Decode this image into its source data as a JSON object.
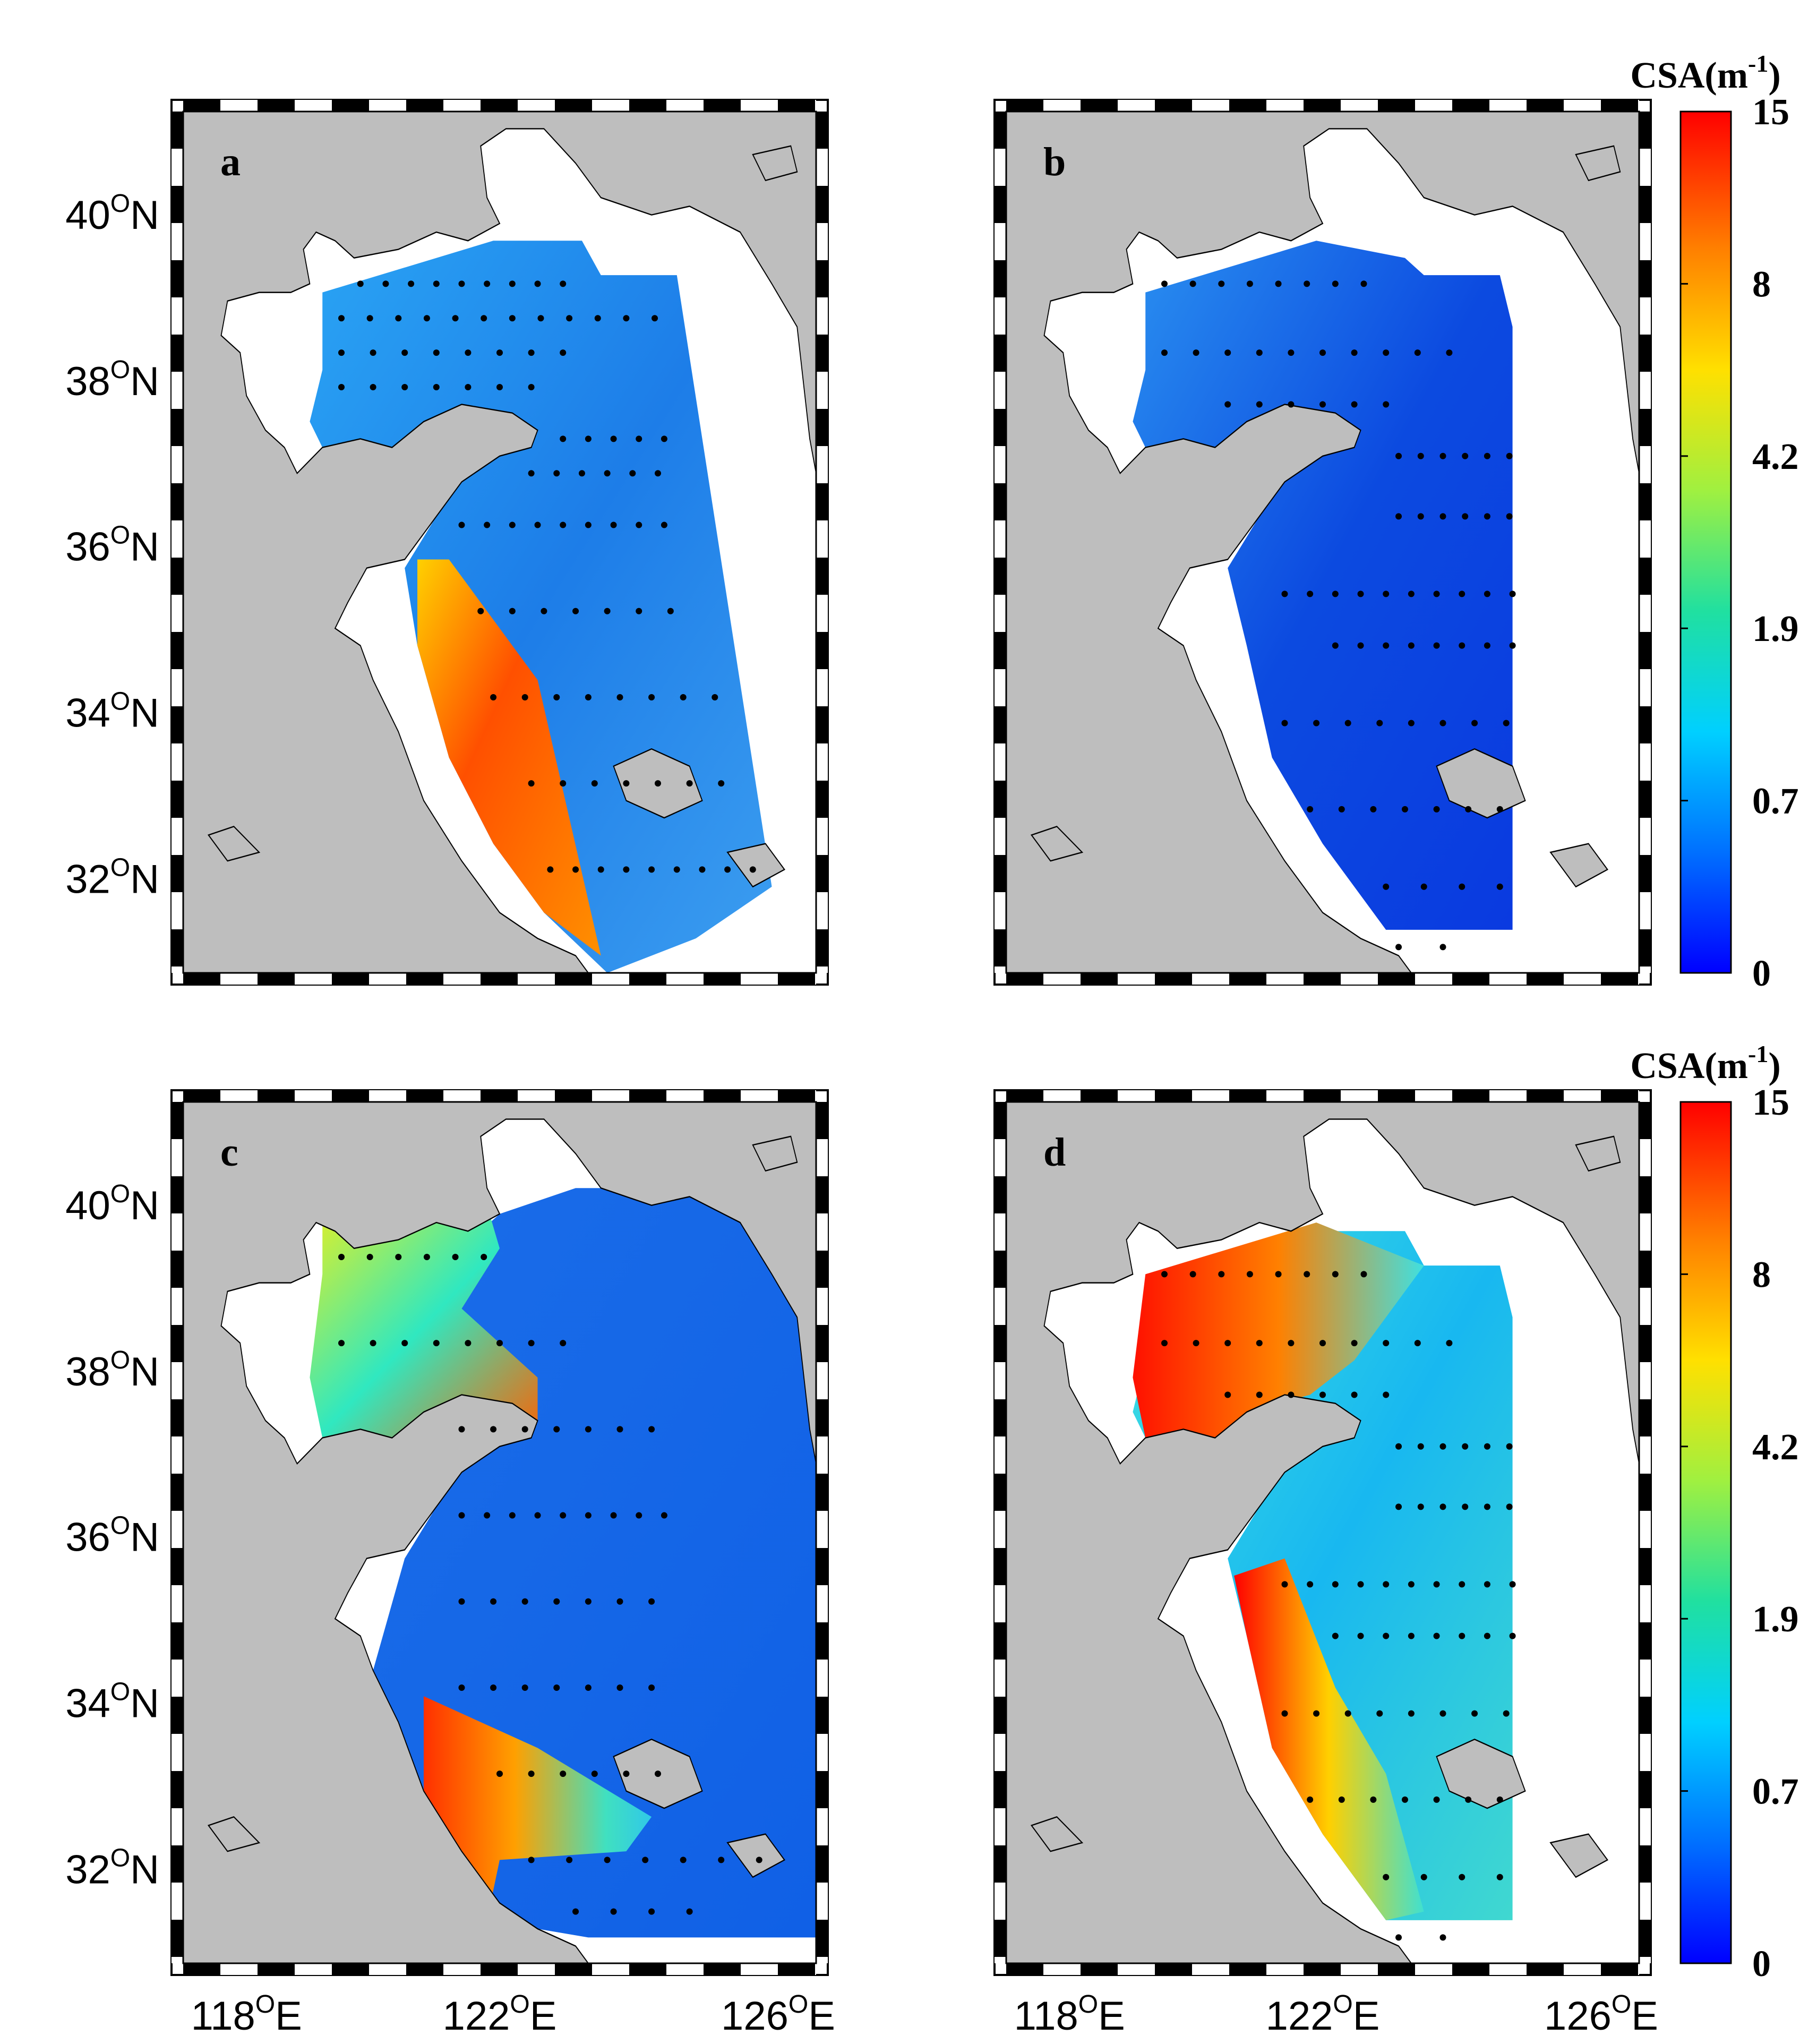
{
  "figure": {
    "panels": [
      {
        "label": "a",
        "colorbar": false
      },
      {
        "label": "b",
        "colorbar": true
      },
      {
        "label": "c",
        "colorbar": false
      },
      {
        "label": "d",
        "colorbar": true
      }
    ],
    "lat_ticks": [
      {
        "deg": "40",
        "sup": "O",
        "hemi": "N"
      },
      {
        "deg": "38",
        "sup": "O",
        "hemi": "N"
      },
      {
        "deg": "36",
        "sup": "O",
        "hemi": "N"
      },
      {
        "deg": "34",
        "sup": "O",
        "hemi": "N"
      },
      {
        "deg": "32",
        "sup": "O",
        "hemi": "N"
      }
    ],
    "lon_ticks": [
      {
        "deg": "118",
        "sup": "O",
        "hemi": "E"
      },
      {
        "deg": "122",
        "sup": "O",
        "hemi": "E"
      },
      {
        "deg": "126",
        "sup": "O",
        "hemi": "E"
      }
    ],
    "colorbar": {
      "title_main": "CSA(m",
      "title_sup": "-1",
      "title_end": ")",
      "ticks": [
        "15",
        "8",
        "4.2",
        "1.9",
        "0.7",
        "0"
      ],
      "colors": [
        "#0000ff",
        "#0070ff",
        "#00d0ff",
        "#20e0a0",
        "#a0f040",
        "#ffe000",
        "#ff8000",
        "#ff0000"
      ]
    },
    "land_color": "#bebebe",
    "sea_color": "#ffffff"
  }
}
